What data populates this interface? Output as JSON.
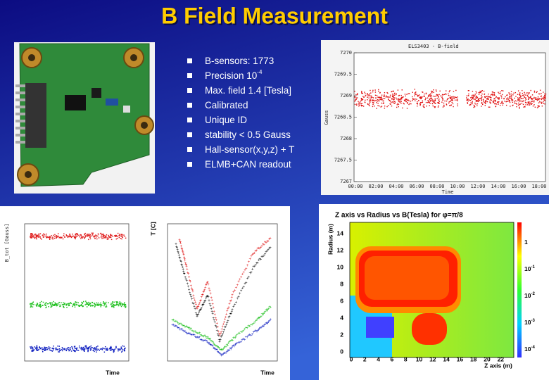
{
  "title": "B Field Measurement",
  "bullets": [
    {
      "text": "B-sensors: 1773"
    },
    {
      "text": "Precision 10",
      "sup": "-4"
    },
    {
      "text": "Max. field 1.4 [Tesla]"
    },
    {
      "text": "Calibrated"
    },
    {
      "text": "Unique ID"
    },
    {
      "text": "stability < 0.5 Gauss"
    },
    {
      "text": "Hall-sensor(x,y,z) + T"
    },
    {
      "text": "ELMB+CAN readout"
    }
  ],
  "field_plot": {
    "title": "ELS3403 - B-field",
    "ylabel": "Gauss",
    "xlabel": "Time",
    "yticks": [
      "7270",
      "7269.5",
      "7269",
      "7268.5",
      "7268",
      "7267.5",
      "7267"
    ],
    "xticks": [
      "00:00",
      "02:00",
      "04:00",
      "06:00",
      "08:00",
      "10:00",
      "12:00",
      "14:00",
      "16:00",
      "18:00"
    ]
  },
  "bfield_history": {
    "ylabel": "B_tot [Gauss]",
    "xlabel": "Time"
  },
  "temperature_history": {
    "ylabel": "T [C]",
    "xlabel": "Time"
  },
  "map_plot": {
    "title": "Z axis vs Radius vs B(Tesla) for φ=π/8",
    "ylabel": "Radius (m)",
    "xlabel": "Z axis (m)",
    "yticks": [
      "0",
      "2",
      "4",
      "6",
      "8",
      "10",
      "12",
      "14"
    ],
    "xticks": [
      "0",
      "2",
      "4",
      "6",
      "8",
      "10",
      "12",
      "14",
      "16",
      "18",
      "20",
      "22"
    ],
    "colorbar": [
      {
        "base": "1"
      },
      {
        "base": "10",
        "exp": "-1"
      },
      {
        "base": "10",
        "exp": "-2"
      },
      {
        "base": "10",
        "exp": "-3"
      },
      {
        "base": "10",
        "exp": "-4"
      }
    ]
  }
}
